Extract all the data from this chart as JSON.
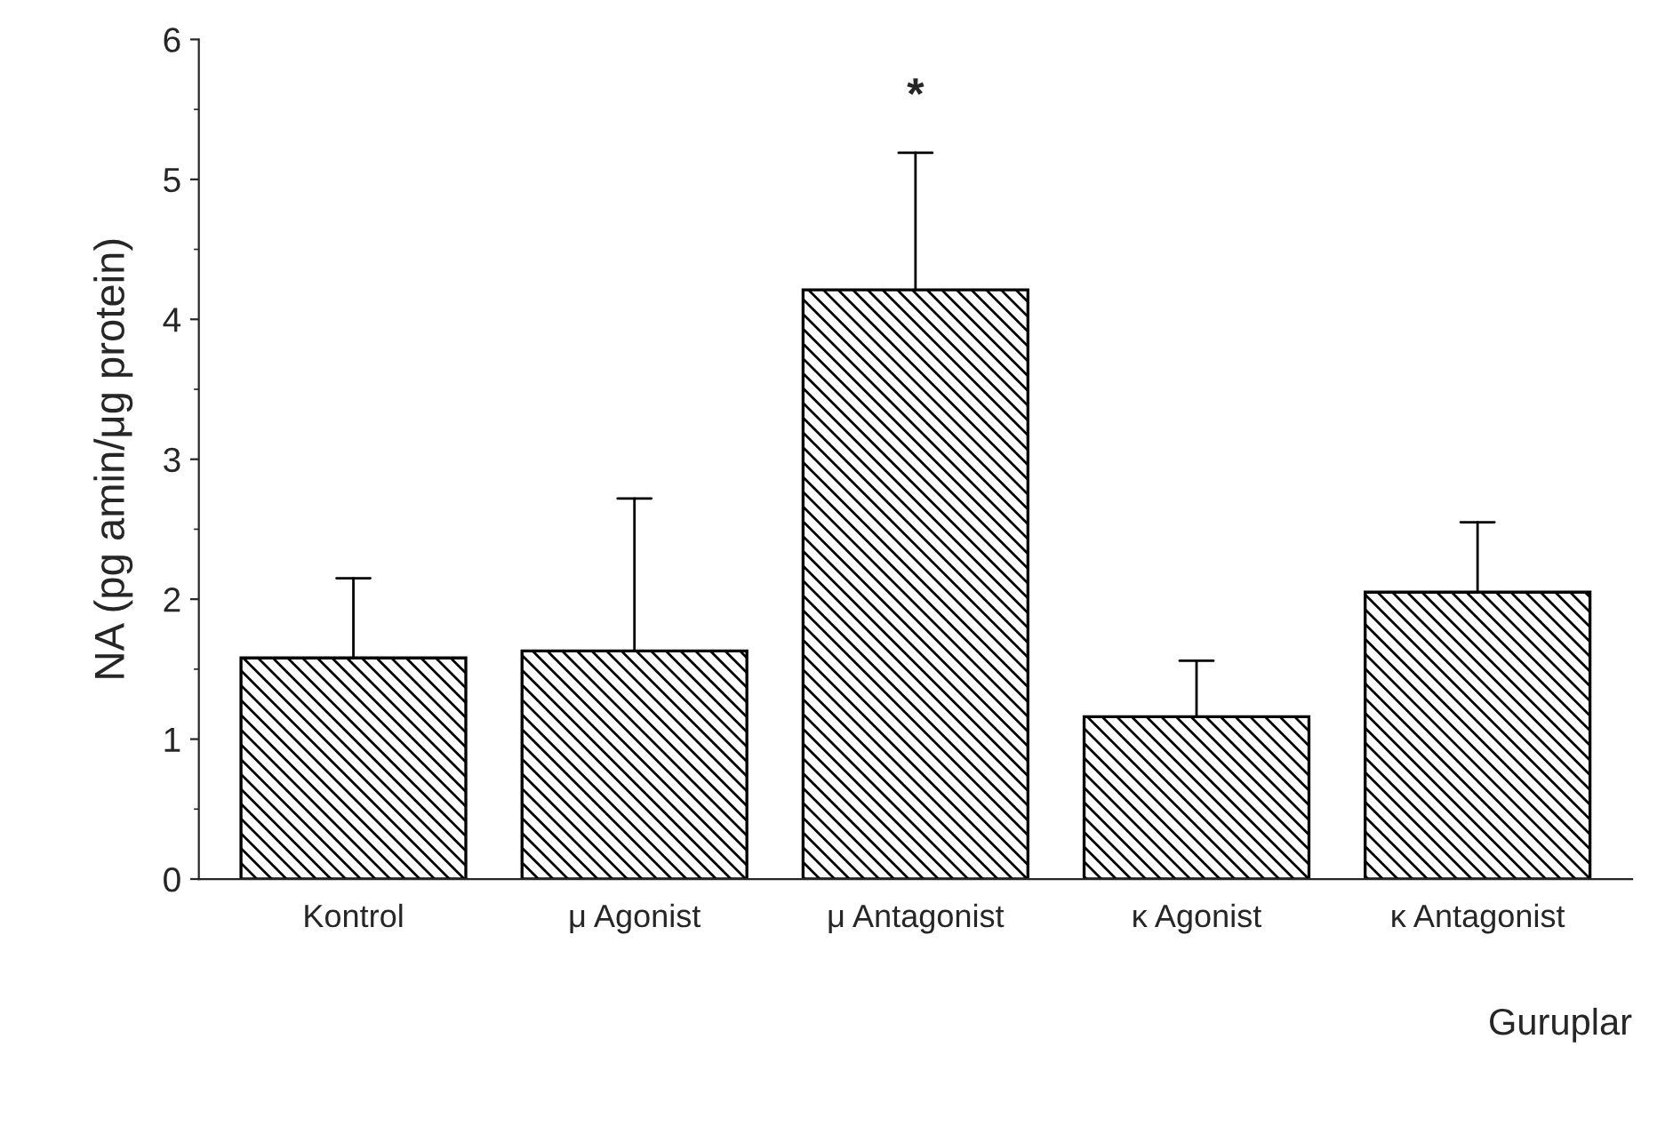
{
  "chart_data": {
    "type": "bar",
    "categories": [
      "Kontrol",
      "μ Agonist",
      "μ Antagonist",
      "κ Agonist",
      "κ Antagonist"
    ],
    "values": [
      1.58,
      1.63,
      4.21,
      1.16,
      2.05
    ],
    "errors": [
      [
        1.58,
        2.15
      ],
      [
        1.63,
        2.72
      ],
      [
        4.21,
        5.19
      ],
      [
        1.16,
        1.56
      ],
      [
        2.05,
        2.55
      ]
    ],
    "color": "#000000",
    "xlabel": "Guruplar",
    "ylabel": "NA (pg amin/μg protein)",
    "ylim": [
      0,
      6
    ],
    "yticks": [
      0,
      1,
      2,
      3,
      4,
      5,
      6
    ],
    "grid": false,
    "annotations": [
      {
        "text": "*",
        "x": "μ Antagonist",
        "y": 5.19
      }
    ]
  }
}
